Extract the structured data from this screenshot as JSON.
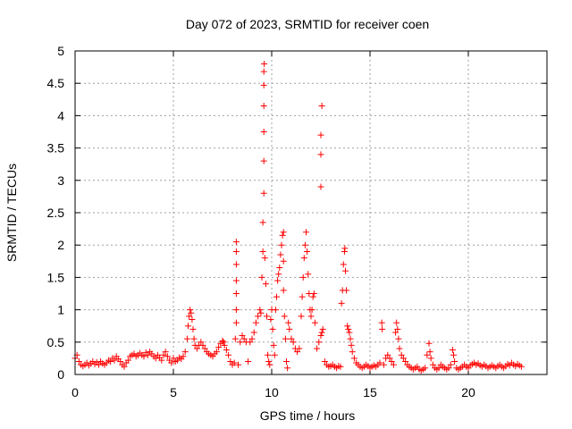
{
  "chart_data": {
    "type": "scatter",
    "title": "Day 072 of 2023, SRMTID for receiver coen",
    "xlabel": "GPS time / hours",
    "ylabel": "SRMTID / TECUs",
    "xlim": [
      0,
      24
    ],
    "ylim": [
      0,
      5
    ],
    "x_ticks": [
      0,
      5,
      10,
      15,
      20
    ],
    "x_tick_labels": [
      "0",
      "5",
      "10",
      "15",
      "20"
    ],
    "y_ticks": [
      0,
      0.5,
      1,
      1.5,
      2,
      2.5,
      3,
      3.5,
      4,
      4.5,
      5
    ],
    "y_tick_labels": [
      "0",
      "0.5",
      "1",
      "1.5",
      "2",
      "2.5",
      "3",
      "3.5",
      "4",
      "4.5",
      "5"
    ],
    "grid": true,
    "marker": "+",
    "color": "#ff0000",
    "series": [
      {
        "name": "SRMTID",
        "points": [
          [
            0.0,
            0.25
          ],
          [
            0.1,
            0.3
          ],
          [
            0.2,
            0.2
          ],
          [
            0.3,
            0.15
          ],
          [
            0.4,
            0.13
          ],
          [
            0.5,
            0.15
          ],
          [
            0.6,
            0.18
          ],
          [
            0.7,
            0.14
          ],
          [
            0.8,
            0.17
          ],
          [
            0.9,
            0.2
          ],
          [
            1.0,
            0.16
          ],
          [
            1.1,
            0.19
          ],
          [
            1.2,
            0.15
          ],
          [
            1.3,
            0.2
          ],
          [
            1.4,
            0.17
          ],
          [
            1.5,
            0.15
          ],
          [
            1.6,
            0.18
          ],
          [
            1.7,
            0.22
          ],
          [
            1.8,
            0.2
          ],
          [
            1.9,
            0.25
          ],
          [
            2.0,
            0.22
          ],
          [
            2.1,
            0.28
          ],
          [
            2.2,
            0.24
          ],
          [
            2.3,
            0.2
          ],
          [
            2.4,
            0.15
          ],
          [
            2.5,
            0.12
          ],
          [
            2.6,
            0.18
          ],
          [
            2.7,
            0.22
          ],
          [
            2.8,
            0.28
          ],
          [
            2.9,
            0.3
          ],
          [
            3.0,
            0.32
          ],
          [
            3.1,
            0.28
          ],
          [
            3.2,
            0.3
          ],
          [
            3.3,
            0.33
          ],
          [
            3.4,
            0.3
          ],
          [
            3.5,
            0.28
          ],
          [
            3.6,
            0.34
          ],
          [
            3.7,
            0.3
          ],
          [
            3.8,
            0.35
          ],
          [
            3.9,
            0.32
          ],
          [
            4.0,
            0.28
          ],
          [
            4.1,
            0.25
          ],
          [
            4.2,
            0.3
          ],
          [
            4.3,
            0.26
          ],
          [
            4.4,
            0.22
          ],
          [
            4.5,
            0.3
          ],
          [
            4.6,
            0.35
          ],
          [
            4.7,
            0.28
          ],
          [
            4.8,
            0.22
          ],
          [
            4.9,
            0.18
          ],
          [
            5.0,
            0.25
          ],
          [
            5.1,
            0.2
          ],
          [
            5.2,
            0.22
          ],
          [
            5.3,
            0.26
          ],
          [
            5.4,
            0.24
          ],
          [
            5.5,
            0.28
          ],
          [
            5.6,
            0.35
          ],
          [
            5.7,
            0.55
          ],
          [
            5.75,
            0.75
          ],
          [
            5.8,
            0.9
          ],
          [
            5.85,
            1.0
          ],
          [
            5.9,
            0.95
          ],
          [
            5.95,
            0.85
          ],
          [
            6.0,
            0.7
          ],
          [
            6.05,
            0.55
          ],
          [
            6.1,
            0.45
          ],
          [
            6.2,
            0.4
          ],
          [
            6.3,
            0.45
          ],
          [
            6.4,
            0.5
          ],
          [
            6.5,
            0.45
          ],
          [
            6.6,
            0.4
          ],
          [
            6.7,
            0.35
          ],
          [
            6.8,
            0.32
          ],
          [
            6.9,
            0.3
          ],
          [
            7.0,
            0.28
          ],
          [
            7.1,
            0.32
          ],
          [
            7.2,
            0.35
          ],
          [
            7.3,
            0.42
          ],
          [
            7.4,
            0.48
          ],
          [
            7.5,
            0.52
          ],
          [
            7.55,
            0.5
          ],
          [
            7.6,
            0.45
          ],
          [
            7.7,
            0.38
          ],
          [
            7.8,
            0.3
          ],
          [
            7.9,
            0.2
          ],
          [
            8.0,
            0.15
          ],
          [
            8.1,
            0.18
          ],
          [
            8.15,
            0.55
          ],
          [
            8.2,
            0.8
          ],
          [
            8.2,
            1.0
          ],
          [
            8.2,
            1.25
          ],
          [
            8.2,
            1.45
          ],
          [
            8.2,
            1.7
          ],
          [
            8.2,
            1.9
          ],
          [
            8.2,
            2.05
          ],
          [
            8.3,
            0.15
          ],
          [
            8.4,
            0.5
          ],
          [
            8.5,
            0.6
          ],
          [
            8.6,
            0.55
          ],
          [
            8.7,
            0.5
          ],
          [
            8.8,
            0.2
          ],
          [
            8.9,
            0.5
          ],
          [
            9.0,
            0.55
          ],
          [
            9.1,
            0.65
          ],
          [
            9.2,
            0.8
          ],
          [
            9.3,
            0.9
          ],
          [
            9.4,
            1.0
          ],
          [
            9.45,
            0.95
          ],
          [
            9.5,
            1.5
          ],
          [
            9.55,
            1.9
          ],
          [
            9.55,
            2.35
          ],
          [
            9.6,
            2.8
          ],
          [
            9.6,
            3.3
          ],
          [
            9.6,
            3.75
          ],
          [
            9.6,
            4.15
          ],
          [
            9.6,
            4.47
          ],
          [
            9.6,
            4.68
          ],
          [
            9.62,
            4.8
          ],
          [
            9.65,
            1.8
          ],
          [
            9.7,
            1.4
          ],
          [
            9.75,
            0.9
          ],
          [
            9.8,
            0.3
          ],
          [
            9.85,
            0.2
          ],
          [
            9.9,
            0.15
          ],
          [
            9.95,
            0.85
          ],
          [
            10.0,
            1.0
          ],
          [
            10.05,
            0.7
          ],
          [
            10.1,
            0.45
          ],
          [
            10.15,
            0.3
          ],
          [
            10.2,
            1.0
          ],
          [
            10.25,
            1.2
          ],
          [
            10.3,
            1.45
          ],
          [
            10.35,
            1.55
          ],
          [
            10.4,
            1.65
          ],
          [
            10.45,
            1.85
          ],
          [
            10.5,
            2.0
          ],
          [
            10.55,
            2.15
          ],
          [
            10.6,
            2.2
          ],
          [
            10.6,
            1.75
          ],
          [
            10.6,
            1.3
          ],
          [
            10.65,
            0.9
          ],
          [
            10.7,
            0.55
          ],
          [
            10.75,
            0.2
          ],
          [
            10.8,
            0.1
          ],
          [
            10.85,
            0.8
          ],
          [
            10.9,
            0.7
          ],
          [
            11.0,
            0.55
          ],
          [
            11.1,
            0.5
          ],
          [
            11.2,
            0.4
          ],
          [
            11.3,
            0.35
          ],
          [
            11.4,
            0.4
          ],
          [
            11.5,
            0.9
          ],
          [
            11.55,
            1.2
          ],
          [
            11.6,
            1.5
          ],
          [
            11.65,
            1.8
          ],
          [
            11.7,
            2.0
          ],
          [
            11.75,
            2.2
          ],
          [
            11.8,
            1.9
          ],
          [
            11.85,
            1.55
          ],
          [
            11.9,
            1.25
          ],
          [
            11.95,
            1.0
          ],
          [
            12.0,
            0.9
          ],
          [
            12.05,
            1.0
          ],
          [
            12.1,
            1.2
          ],
          [
            12.15,
            1.25
          ],
          [
            12.2,
            0.8
          ],
          [
            12.3,
            0.4
          ],
          [
            12.4,
            0.5
          ],
          [
            12.5,
            0.6
          ],
          [
            12.55,
            0.65
          ],
          [
            12.6,
            0.7
          ],
          [
            12.5,
            2.9
          ],
          [
            12.5,
            3.4
          ],
          [
            12.5,
            3.7
          ],
          [
            12.55,
            4.15
          ],
          [
            12.7,
            0.2
          ],
          [
            12.8,
            0.15
          ],
          [
            12.9,
            0.12
          ],
          [
            13.0,
            0.13
          ],
          [
            13.1,
            0.15
          ],
          [
            13.2,
            0.12
          ],
          [
            13.3,
            0.1
          ],
          [
            13.4,
            0.13
          ],
          [
            13.5,
            0.12
          ],
          [
            13.55,
            1.1
          ],
          [
            13.6,
            1.3
          ],
          [
            13.65,
            1.7
          ],
          [
            13.7,
            1.9
          ],
          [
            13.72,
            1.95
          ],
          [
            13.75,
            1.6
          ],
          [
            13.8,
            1.3
          ],
          [
            13.85,
            0.75
          ],
          [
            13.9,
            0.7
          ],
          [
            13.95,
            0.65
          ],
          [
            14.0,
            0.55
          ],
          [
            14.05,
            0.45
          ],
          [
            14.1,
            0.35
          ],
          [
            14.2,
            0.25
          ],
          [
            14.3,
            0.18
          ],
          [
            14.4,
            0.15
          ],
          [
            14.5,
            0.12
          ],
          [
            14.6,
            0.1
          ],
          [
            14.7,
            0.12
          ],
          [
            14.8,
            0.15
          ],
          [
            14.9,
            0.13
          ],
          [
            15.0,
            0.1
          ],
          [
            15.1,
            0.12
          ],
          [
            15.2,
            0.14
          ],
          [
            15.3,
            0.12
          ],
          [
            15.4,
            0.15
          ],
          [
            15.5,
            0.18
          ],
          [
            15.6,
            0.8
          ],
          [
            15.62,
            0.7
          ],
          [
            15.7,
            0.15
          ],
          [
            15.8,
            0.25
          ],
          [
            15.9,
            0.3
          ],
          [
            16.0,
            0.25
          ],
          [
            16.1,
            0.2
          ],
          [
            16.2,
            0.15
          ],
          [
            16.3,
            0.65
          ],
          [
            16.35,
            0.8
          ],
          [
            16.4,
            0.7
          ],
          [
            16.45,
            0.55
          ],
          [
            16.5,
            0.4
          ],
          [
            16.6,
            0.3
          ],
          [
            16.7,
            0.25
          ],
          [
            16.8,
            0.2
          ],
          [
            16.9,
            0.15
          ],
          [
            17.0,
            0.12
          ],
          [
            17.1,
            0.1
          ],
          [
            17.2,
            0.08
          ],
          [
            17.3,
            0.1
          ],
          [
            17.4,
            0.12
          ],
          [
            17.5,
            0.08
          ],
          [
            17.6,
            0.06
          ],
          [
            17.7,
            0.08
          ],
          [
            17.8,
            0.1
          ],
          [
            17.9,
            0.3
          ],
          [
            18.0,
            0.48
          ],
          [
            18.05,
            0.35
          ],
          [
            18.1,
            0.25
          ],
          [
            18.2,
            0.15
          ],
          [
            18.3,
            0.1
          ],
          [
            18.4,
            0.08
          ],
          [
            18.5,
            0.1
          ],
          [
            18.6,
            0.15
          ],
          [
            18.7,
            0.12
          ],
          [
            18.8,
            0.1
          ],
          [
            18.9,
            0.08
          ],
          [
            19.0,
            0.1
          ],
          [
            19.1,
            0.15
          ],
          [
            19.2,
            0.38
          ],
          [
            19.25,
            0.3
          ],
          [
            19.3,
            0.2
          ],
          [
            19.4,
            0.1
          ],
          [
            19.5,
            0.08
          ],
          [
            19.6,
            0.1
          ],
          [
            19.7,
            0.12
          ],
          [
            19.8,
            0.15
          ],
          [
            19.9,
            0.12
          ],
          [
            20.0,
            0.1
          ],
          [
            20.1,
            0.14
          ],
          [
            20.2,
            0.16
          ],
          [
            20.3,
            0.18
          ],
          [
            20.4,
            0.15
          ],
          [
            20.5,
            0.17
          ],
          [
            20.6,
            0.14
          ],
          [
            20.7,
            0.12
          ],
          [
            20.8,
            0.15
          ],
          [
            20.9,
            0.13
          ],
          [
            21.0,
            0.1
          ],
          [
            21.1,
            0.12
          ],
          [
            21.2,
            0.14
          ],
          [
            21.3,
            0.12
          ],
          [
            21.4,
            0.1
          ],
          [
            21.5,
            0.13
          ],
          [
            21.6,
            0.15
          ],
          [
            21.7,
            0.12
          ],
          [
            21.8,
            0.1
          ],
          [
            21.9,
            0.13
          ],
          [
            22.0,
            0.16
          ],
          [
            22.1,
            0.14
          ],
          [
            22.2,
            0.18
          ],
          [
            22.3,
            0.15
          ],
          [
            22.4,
            0.13
          ],
          [
            22.5,
            0.16
          ],
          [
            22.6,
            0.14
          ],
          [
            22.7,
            0.12
          ]
        ]
      }
    ]
  }
}
